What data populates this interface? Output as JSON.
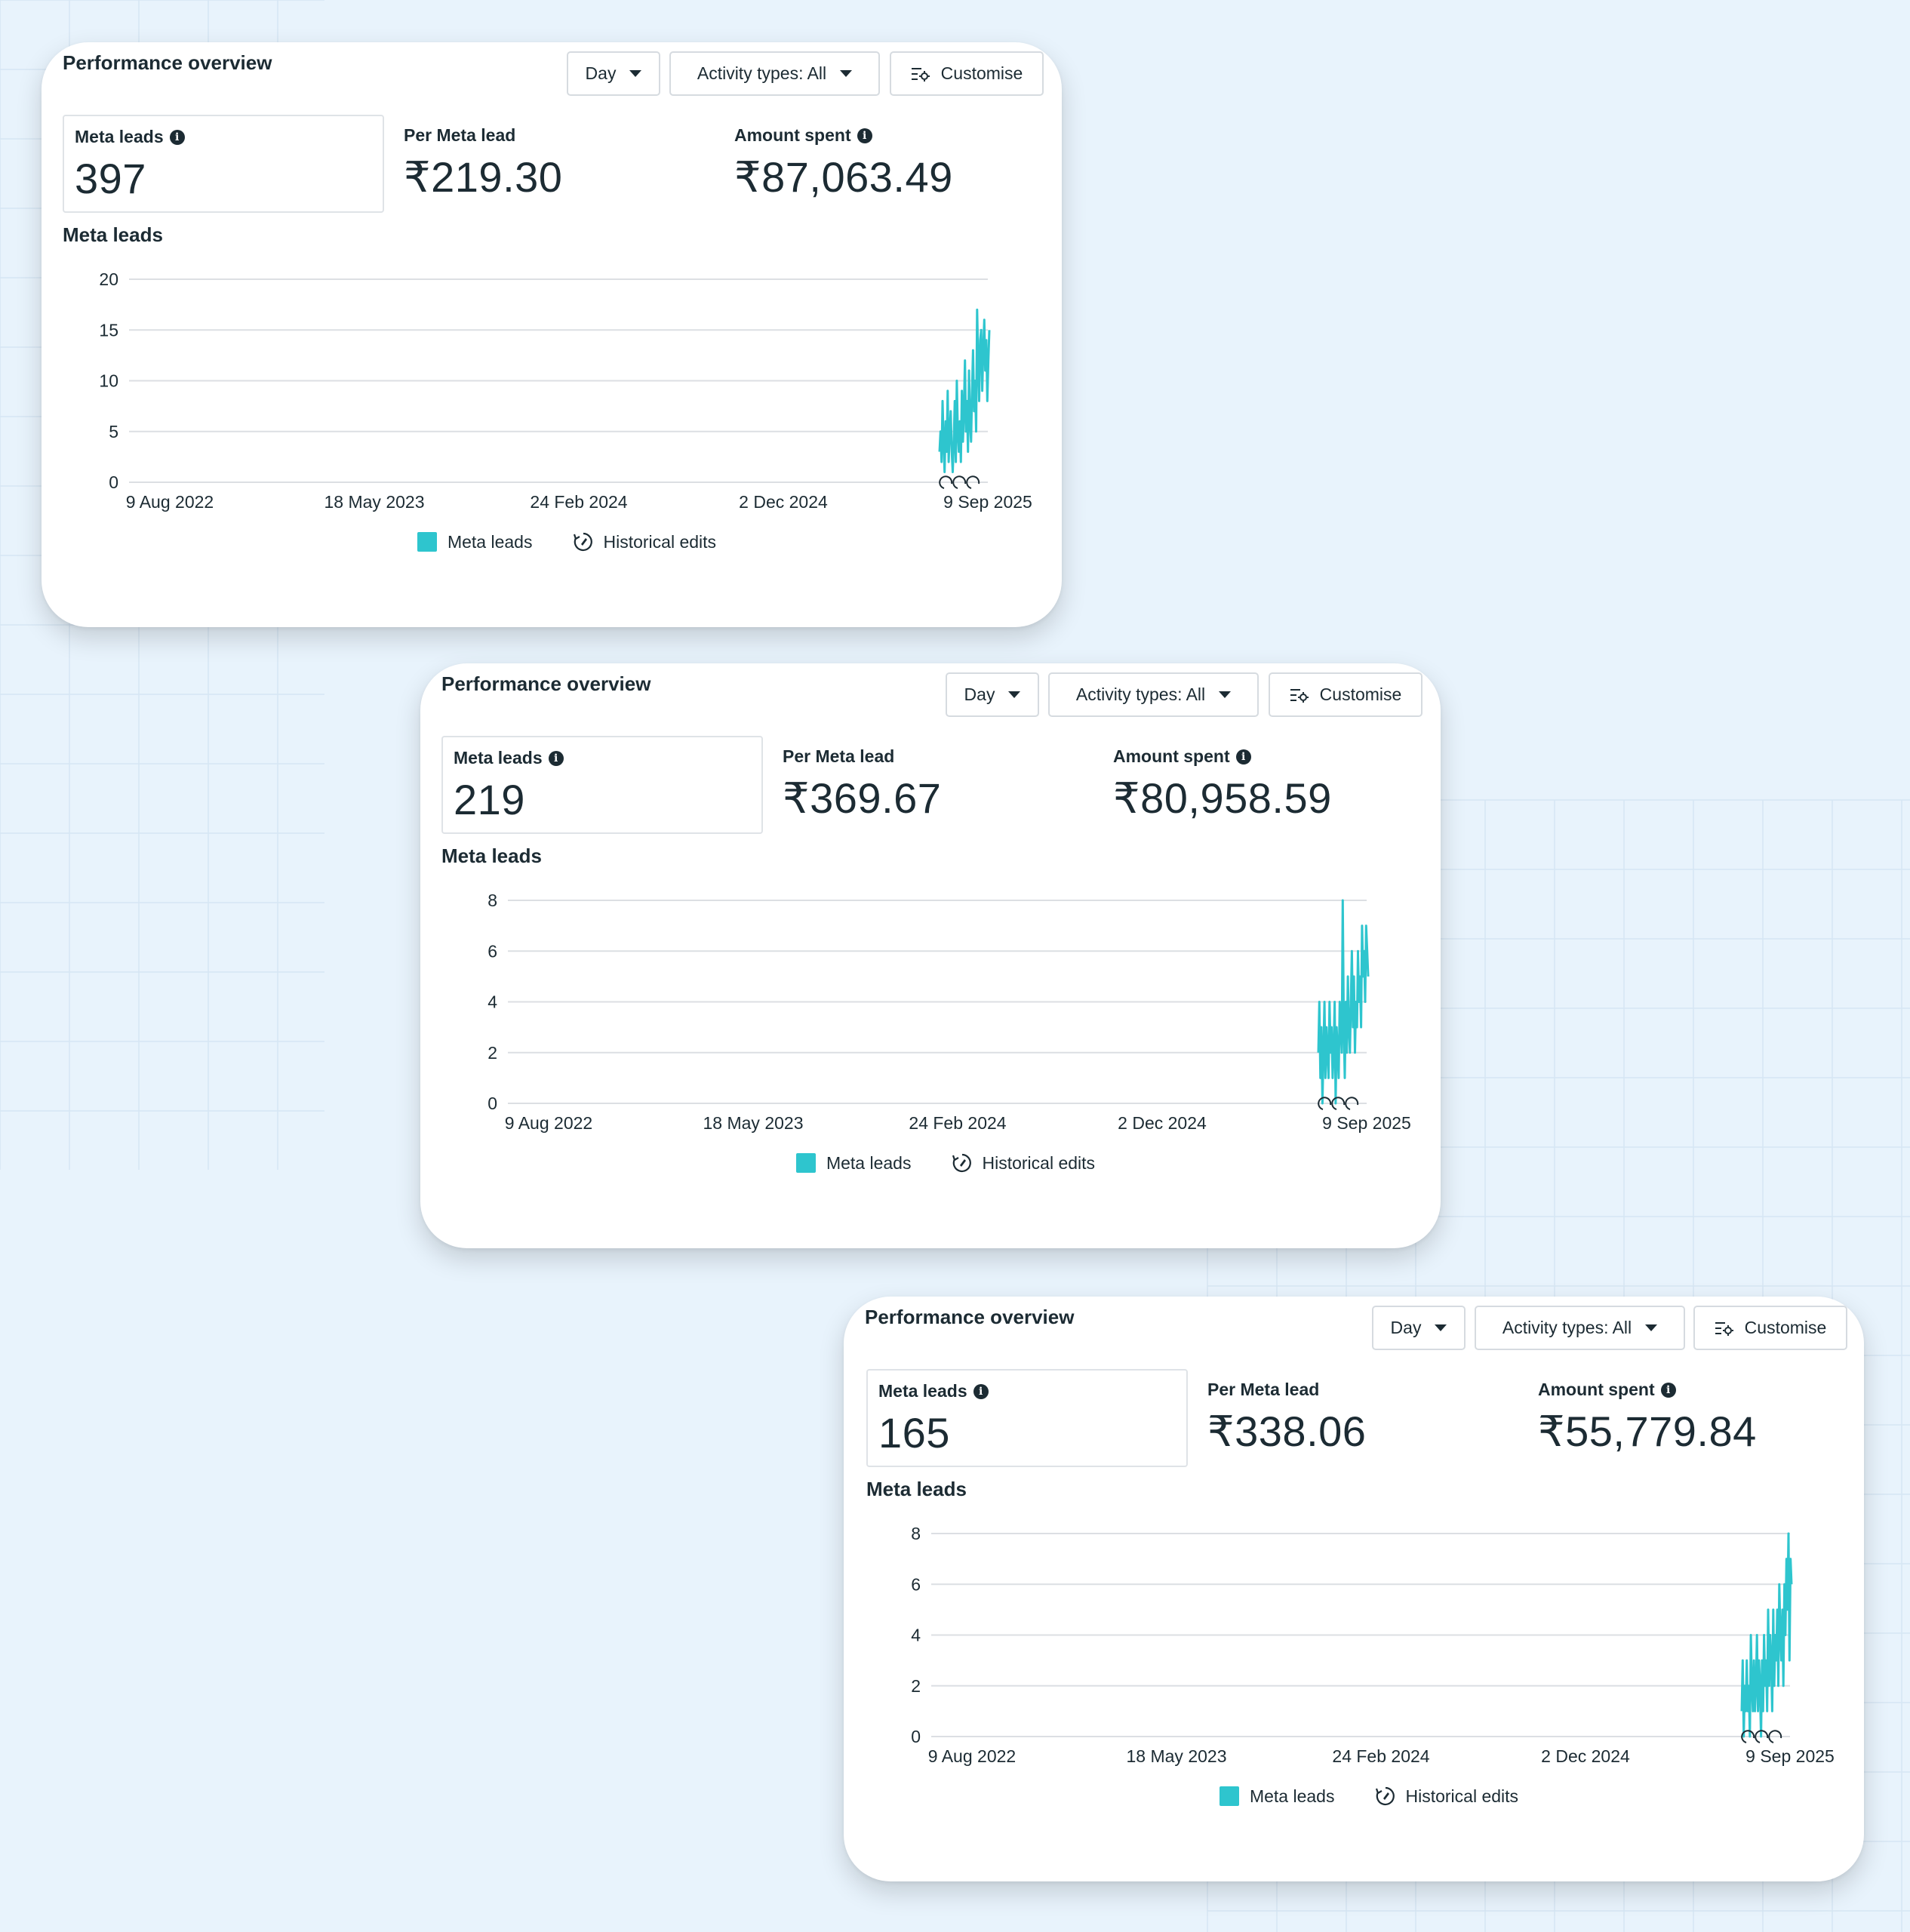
{
  "colors": {
    "background": "#e8f3fc",
    "card": "#ffffff",
    "accent_series": "#2ec5ce",
    "text": "#1c2b33",
    "gridline": "#dcdfe3"
  },
  "icons": {
    "dropdown": "chevron-down-icon",
    "customise": "settings-sliders-icon",
    "info": "info-icon",
    "historical_edits": "history-edit-icon"
  },
  "panels": [
    {
      "title": "Performance overview",
      "controls": {
        "day": "Day",
        "activity": "Activity types: All",
        "customise": "Customise"
      },
      "metrics": [
        {
          "label": "Meta leads",
          "value": "397"
        },
        {
          "label": "Per Meta lead",
          "value": "₹219.30"
        },
        {
          "label": "Amount spent",
          "value": "₹87,063.49"
        }
      ],
      "chart_label": "Meta leads",
      "legend": {
        "series": "Meta leads",
        "edits": "Historical edits"
      }
    },
    {
      "title": "Performance overview",
      "controls": {
        "day": "Day",
        "activity": "Activity types: All",
        "customise": "Customise"
      },
      "metrics": [
        {
          "label": "Meta leads",
          "value": "219"
        },
        {
          "label": "Per Meta lead",
          "value": "₹369.67"
        },
        {
          "label": "Amount spent",
          "value": "₹80,958.59"
        }
      ],
      "chart_label": "Meta leads",
      "legend": {
        "series": "Meta leads",
        "edits": "Historical edits"
      }
    },
    {
      "title": "Performance overview",
      "controls": {
        "day": "Day",
        "activity": "Activity types: All",
        "customise": "Customise"
      },
      "metrics": [
        {
          "label": "Meta leads",
          "value": "165"
        },
        {
          "label": "Per Meta lead",
          "value": "₹338.06"
        },
        {
          "label": "Amount spent",
          "value": "₹55,779.84"
        }
      ],
      "chart_label": "Meta leads",
      "legend": {
        "series": "Meta leads",
        "edits": "Historical edits"
      }
    }
  ],
  "chart_data": [
    {
      "type": "line",
      "title": "Meta leads",
      "xlabel": "",
      "ylabel": "",
      "x_tick_labels": [
        "9 Aug 2022",
        "18 May 2023",
        "24 Feb 2024",
        "2 Dec 2024",
        "9 Sep 2025"
      ],
      "y_ticks": [
        0,
        5,
        10,
        15,
        20
      ],
      "ylim": [
        0,
        20
      ],
      "grid": true,
      "legend_position": "bottom-center",
      "series": [
        {
          "name": "Meta leads",
          "color": "#2ec5ce",
          "values": [
            3,
            5,
            2,
            8,
            4,
            1,
            6,
            3,
            9,
            2,
            5,
            7,
            3,
            1,
            4,
            8,
            2,
            10,
            5,
            3,
            6,
            2,
            9,
            4,
            7,
            12,
            5,
            8,
            3,
            11,
            6,
            4,
            9,
            13,
            7,
            10,
            5,
            17,
            12,
            8,
            14,
            15,
            9,
            13,
            16,
            11,
            14,
            8,
            12,
            15
          ]
        }
      ]
    },
    {
      "type": "line",
      "title": "Meta leads",
      "xlabel": "",
      "ylabel": "",
      "x_tick_labels": [
        "9 Aug 2022",
        "18 May 2023",
        "24 Feb 2024",
        "2 Dec 2024",
        "9 Sep 2025"
      ],
      "y_ticks": [
        0,
        2,
        4,
        6,
        8
      ],
      "ylim": [
        0,
        8
      ],
      "grid": true,
      "legend_position": "bottom-center",
      "series": [
        {
          "name": "Meta leads",
          "color": "#2ec5ce",
          "values": [
            2,
            4,
            1,
            3,
            0,
            2,
            4,
            1,
            3,
            2,
            1,
            4,
            2,
            3,
            1,
            2,
            4,
            0,
            3,
            2,
            1,
            4,
            3,
            2,
            8,
            3,
            1,
            4,
            2,
            5,
            3,
            2,
            4,
            6,
            3,
            5,
            2,
            4,
            3,
            6,
            4,
            5,
            3,
            7,
            5,
            6,
            4,
            7,
            6,
            5
          ]
        }
      ]
    },
    {
      "type": "line",
      "title": "Meta leads",
      "xlabel": "",
      "ylabel": "",
      "x_tick_labels": [
        "9 Aug 2022",
        "18 May 2023",
        "24 Feb 2024",
        "2 Dec 2024",
        "9 Sep 2025"
      ],
      "y_ticks": [
        0,
        2,
        4,
        6,
        8
      ],
      "ylim": [
        0,
        8
      ],
      "grid": true,
      "legend_position": "bottom-center",
      "series": [
        {
          "name": "Meta leads",
          "color": "#2ec5ce",
          "values": [
            1,
            3,
            0,
            2,
            1,
            3,
            1,
            2,
            0,
            4,
            2,
            1,
            3,
            1,
            2,
            4,
            1,
            3,
            2,
            0,
            3,
            1,
            4,
            2,
            3,
            1,
            5,
            2,
            4,
            3,
            1,
            5,
            2,
            4,
            3,
            5,
            2,
            6,
            4,
            3,
            5,
            2,
            6,
            4,
            7,
            5,
            8,
            3,
            7,
            6
          ]
        }
      ]
    }
  ]
}
